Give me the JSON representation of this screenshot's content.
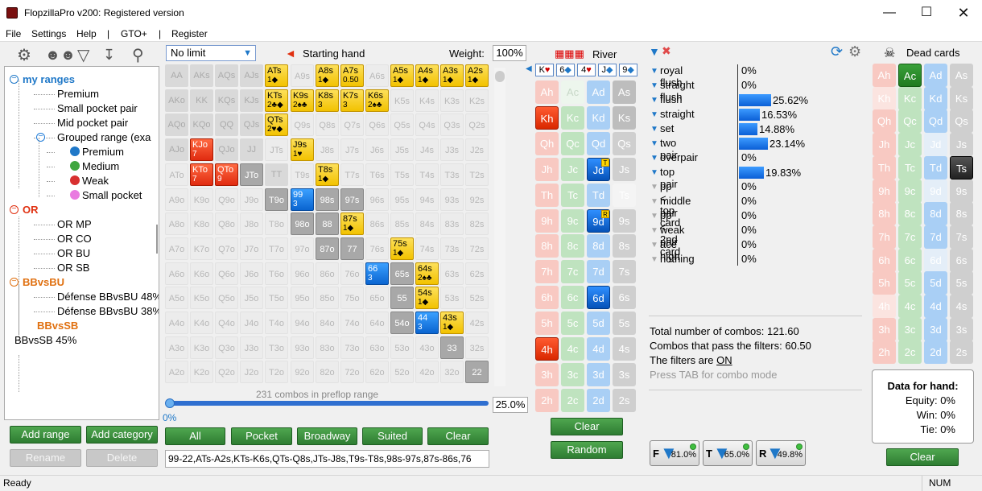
{
  "window": {
    "title": "FlopzillaPro v200: Registered version"
  },
  "menu": [
    "File",
    "Settings",
    "Help",
    "|",
    "GTO+",
    "|",
    "Register"
  ],
  "tree": {
    "items": [
      {
        "label": "my ranges",
        "level": 0,
        "style": "group-blue"
      },
      {
        "label": "Premium",
        "level": 1
      },
      {
        "label": "Small pocket pair",
        "level": 1
      },
      {
        "label": "Mid pocket pair",
        "level": 1
      },
      {
        "label": "Grouped range (exa",
        "level": 1,
        "expander": true
      },
      {
        "label": "Premium",
        "level": 2,
        "dot": "#1f78c8"
      },
      {
        "label": "Medium",
        "level": 2,
        "dot": "#3fa63f"
      },
      {
        "label": "Weak",
        "level": 2,
        "dot": "#d83030"
      },
      {
        "label": "Small pocket",
        "level": 2,
        "dot": "#e97be0"
      },
      {
        "label": "OR",
        "level": 0,
        "style": "group-red"
      },
      {
        "label": "OR MP",
        "level": 1
      },
      {
        "label": "OR CO",
        "level": 1
      },
      {
        "label": "OR BU",
        "level": 1
      },
      {
        "label": "OR SB",
        "level": 1
      },
      {
        "label": "BBvsBU",
        "level": 0,
        "style": "group-orange"
      },
      {
        "label": "Défense BBvsBU 48%",
        "level": 1
      },
      {
        "label": "Défense BBvsBU 38%",
        "level": 1
      },
      {
        "label": "BBvsSB",
        "level": 0,
        "style": "group-orange-noexp"
      },
      {
        "label": "BBvsSB 45%",
        "level": 0,
        "style": "plain"
      }
    ]
  },
  "left_buttons": {
    "add_range": "Add range",
    "add_category": "Add category",
    "rename": "Rename",
    "delete": "Delete"
  },
  "limit_select": "No limit",
  "starting_hand_label": "Starting hand",
  "weight_label": "Weight:",
  "weight_value": "100%",
  "matrix": {
    "rows": [
      [
        "AA",
        "AKs",
        "AQs",
        "AJs",
        "ATs",
        "A9s",
        "A8s",
        "A7s",
        "A6s",
        "A5s",
        "A4s",
        "A3s",
        "A2s"
      ],
      [
        "AKo",
        "KK",
        "KQs",
        "KJs",
        "KTs",
        "K9s",
        "K8s",
        "K7s",
        "K6s",
        "K5s",
        "K4s",
        "K3s",
        "K2s"
      ],
      [
        "AQo",
        "KQo",
        "QQ",
        "QJs",
        "QTs",
        "Q9s",
        "Q8s",
        "Q7s",
        "Q6s",
        "Q5s",
        "Q4s",
        "Q3s",
        "Q2s"
      ],
      [
        "AJo",
        "KJo",
        "QJo",
        "JJ",
        "JTs",
        "J9s",
        "J8s",
        "J7s",
        "J6s",
        "J5s",
        "J4s",
        "J3s",
        "J2s"
      ],
      [
        "ATo",
        "KTo",
        "QTo",
        "JTo",
        "TT",
        "T9s",
        "T8s",
        "T7s",
        "T6s",
        "T5s",
        "T4s",
        "T3s",
        "T2s"
      ],
      [
        "A9o",
        "K9o",
        "Q9o",
        "J9o",
        "T9o",
        "99",
        "98s",
        "97s",
        "96s",
        "95s",
        "94s",
        "93s",
        "92s"
      ],
      [
        "A8o",
        "K8o",
        "Q8o",
        "J8o",
        "T8o",
        "98o",
        "88",
        "87s",
        "86s",
        "85s",
        "84s",
        "83s",
        "82s"
      ],
      [
        "A7o",
        "K7o",
        "Q7o",
        "J7o",
        "T7o",
        "97o",
        "87o",
        "77",
        "76s",
        "75s",
        "74s",
        "73s",
        "72s"
      ],
      [
        "A6o",
        "K6o",
        "Q6o",
        "J6o",
        "T6o",
        "96o",
        "86o",
        "76o",
        "66",
        "65s",
        "64s",
        "63s",
        "62s"
      ],
      [
        "A5o",
        "K5o",
        "Q5o",
        "J5o",
        "T5o",
        "95o",
        "85o",
        "75o",
        "65o",
        "55",
        "54s",
        "53s",
        "52s"
      ],
      [
        "A4o",
        "K4o",
        "Q4o",
        "J4o",
        "T4o",
        "94o",
        "84o",
        "74o",
        "64o",
        "54o",
        "44",
        "43s",
        "42s"
      ],
      [
        "A3o",
        "K3o",
        "Q3o",
        "J3o",
        "T3o",
        "93o",
        "83o",
        "73o",
        "63o",
        "53o",
        "43o",
        "33",
        "32s"
      ],
      [
        "A2o",
        "K2o",
        "Q2o",
        "J2o",
        "T2o",
        "92o",
        "82o",
        "72o",
        "62o",
        "52o",
        "42o",
        "32o",
        "22"
      ]
    ],
    "highlights": {
      "0,4": {
        "c": "y",
        "s": "1◆"
      },
      "0,6": {
        "c": "y",
        "s": "1◆"
      },
      "0,7": {
        "c": "y",
        "s": "0.50"
      },
      "0,9": {
        "c": "y",
        "s": "1◆"
      },
      "0,10": {
        "c": "y",
        "s": "1◆"
      },
      "0,11": {
        "c": "y",
        "s": "1◆"
      },
      "0,12": {
        "c": "y",
        "s": "1◆"
      },
      "1,4": {
        "c": "y",
        "s": "2♣◆"
      },
      "1,5": {
        "c": "y",
        "s": "2♠♣"
      },
      "1,6": {
        "c": "y",
        "s": "3"
      },
      "1,7": {
        "c": "y",
        "s": "3"
      },
      "1,8": {
        "c": "y",
        "s": "2♠♣"
      },
      "2,4": {
        "c": "y",
        "s": "2♥◆"
      },
      "3,1": {
        "c": "r",
        "s": "7"
      },
      "3,5": {
        "c": "y",
        "s": "1♥"
      },
      "4,1": {
        "c": "r",
        "s": "7"
      },
      "4,2": {
        "c": "r",
        "s": "9"
      },
      "4,6": {
        "c": "y",
        "s": "1◆"
      },
      "5,5": {
        "c": "b",
        "s": "3"
      },
      "6,7": {
        "c": "y",
        "s": "1◆"
      },
      "7,9": {
        "c": "y",
        "s": "1◆"
      },
      "8,8": {
        "c": "b",
        "s": "3"
      },
      "8,10": {
        "c": "y",
        "s": "2♠♣"
      },
      "9,10": {
        "c": "y",
        "s": "1◆"
      },
      "10,10": {
        "c": "b",
        "s": "3"
      },
      "10,11": {
        "c": "y",
        "s": "1◆"
      }
    },
    "grey_cells": [
      "4,3",
      "5,4",
      "5,6",
      "5,7",
      "6,5",
      "6,6",
      "7,6",
      "7,7",
      "8,9",
      "9,9",
      "10,9",
      "11,11",
      "12,12"
    ],
    "pp_cells": [
      "0,0",
      "1,1",
      "2,2",
      "3,3",
      "4,4",
      "0,1",
      "0,2",
      "0,3",
      "1,2",
      "1,3",
      "2,3",
      "1,0",
      "2,0",
      "2,1",
      "3,0",
      "3,2"
    ]
  },
  "combos_text": "231 combos in preflop range",
  "slider_left": "0%",
  "slider_right": "25.0%",
  "preset_buttons": [
    "All",
    "Pocket",
    "Broadway",
    "Suited",
    "Clear"
  ],
  "range_text": "99-22,ATs-A2s,KTs-K6s,QTs-Q8s,JTs-J8s,T9s-T8s,98s-97s,87s-86s,76",
  "river": {
    "label": "River",
    "board": [
      {
        "r": "K",
        "s": "♥",
        "color": "#d00000"
      },
      {
        "r": "6",
        "s": "◆",
        "color": "#1f78c8"
      },
      {
        "r": "4",
        "s": "♥",
        "color": "#d00000"
      },
      {
        "r": "J",
        "s": "◆",
        "color": "#1f78c8"
      },
      {
        "r": "9",
        "s": "◆",
        "color": "#1f78c8"
      }
    ],
    "ranks": [
      "A",
      "K",
      "Q",
      "J",
      "T",
      "9",
      "8",
      "7",
      "6",
      "5",
      "4",
      "3",
      "2"
    ],
    "clear": "Clear",
    "random": "Random"
  },
  "dead": {
    "label": "Dead cards",
    "clear": "Clear"
  },
  "stats": [
    {
      "name": "royal flush",
      "val": "0%",
      "pct": 0,
      "active": true
    },
    {
      "name": "straight flush",
      "val": "0%",
      "pct": 0,
      "active": true
    },
    {
      "name": "flush",
      "val": "25.62%",
      "pct": 25.62,
      "active": true
    },
    {
      "name": "straight",
      "val": "16.53%",
      "pct": 16.53,
      "active": true
    },
    {
      "name": "set",
      "val": "14.88%",
      "pct": 14.88,
      "active": true
    },
    {
      "name": "two pair",
      "val": "23.14%",
      "pct": 23.14,
      "active": true
    },
    {
      "name": "overpair",
      "val": "0%",
      "pct": 0,
      "active": true
    },
    {
      "name": "top pair",
      "val": "19.83%",
      "pct": 19.83,
      "active": true
    },
    {
      "name": "pp < top card",
      "val": "0%",
      "pct": 0,
      "active": false
    },
    {
      "name": "middle pair",
      "val": "0%",
      "pct": 0,
      "active": false
    },
    {
      "name": "pp < 2nd card",
      "val": "0%",
      "pct": 0,
      "active": false
    },
    {
      "name": "weak pair",
      "val": "0%",
      "pct": 0,
      "active": false
    },
    {
      "name": "ace high",
      "val": "0%",
      "pct": 0,
      "active": false
    },
    {
      "name": "nothing",
      "val": "0%",
      "pct": 0,
      "active": false
    }
  ],
  "summary": {
    "total": "Total number of combos: 121.60",
    "pass": "Combos that pass the filters: 60.50",
    "filters_prefix": "The filters are ",
    "filters_state": "ON",
    "tab_hint": "Press TAB for combo mode"
  },
  "filter_toggles": [
    {
      "letter": "F",
      "val": "81.0%"
    },
    {
      "letter": "T",
      "val": "65.0%"
    },
    {
      "letter": "R",
      "val": "49.8%"
    }
  ],
  "hand_data": {
    "title": "Data for hand:",
    "equity": "Equity: 0%",
    "win": "Win: 0%",
    "tie": "Tie: 0%"
  },
  "status": {
    "left": "Ready",
    "right": "NUM"
  },
  "icons": [
    "settings-gear-icon",
    "players-icon",
    "filter-plus-icon",
    "import-icon",
    "search-icon",
    "refresh-icon",
    "gear-icon",
    "skull-icon",
    "red-arrow-icon",
    "filter-x-icon"
  ]
}
